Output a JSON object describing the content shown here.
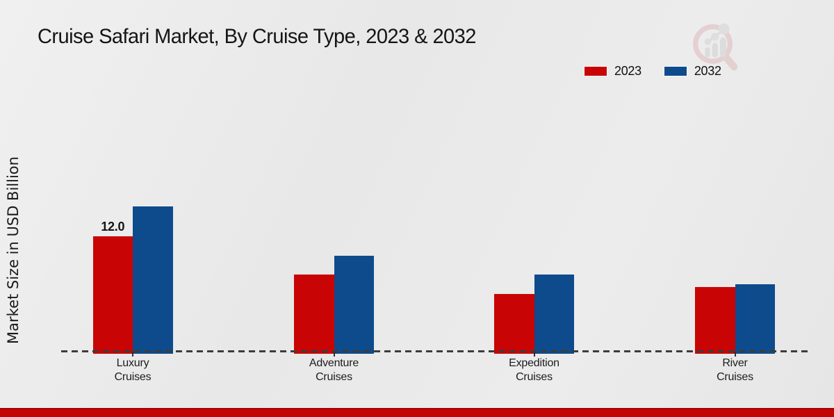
{
  "chart_data": {
    "type": "bar",
    "title": "Cruise Safari Market, By Cruise Type, 2023 & 2032",
    "ylabel": "Market Size in USD Billion",
    "xlabel": "",
    "categories": [
      "Luxury\nCruises",
      "Adventure\nCruises",
      "Expedition\nCruises",
      "River\nCruises"
    ],
    "series": [
      {
        "name": "2023",
        "color": "#c90404",
        "values": [
          12.0,
          8.0,
          6.0,
          6.7
        ]
      },
      {
        "name": "2032",
        "color": "#0d4b8c",
        "values": [
          15.1,
          10.0,
          8.0,
          7.0
        ]
      }
    ],
    "annotations": [
      {
        "series_index": 0,
        "category_index": 0,
        "text": "12.0"
      }
    ],
    "ylim": [
      0,
      16
    ],
    "grid": false,
    "y_axis_ticks_visible": false,
    "baseline_style": "dashed",
    "legend_position": "top-right"
  },
  "footer": {
    "accent_color": "#c50404"
  },
  "watermark": {
    "name": "magnifier-bar-chart-logo",
    "ring_color": "#dfb9bc",
    "bar_color": "#cfcfcf"
  }
}
